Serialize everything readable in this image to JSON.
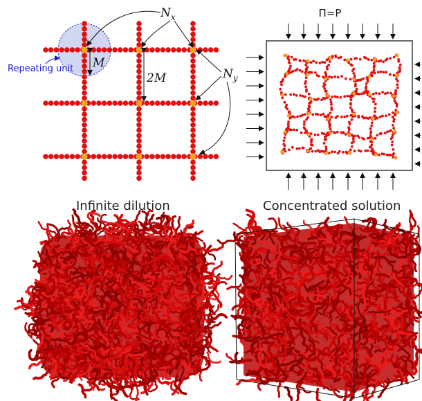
{
  "lattice_panel": {
    "label_nx": "N",
    "label_nx_sub": "x",
    "label_ny": "N",
    "label_ny_sub": "y",
    "label_m": "M",
    "label_2m": "2M",
    "repeating_unit_label": "Repeating unit"
  },
  "compressed_panel": {
    "pressure_label": "Π=P"
  },
  "captions": {
    "left": "Infinite dilution",
    "right": "Concentrated solution"
  },
  "colors": {
    "bead_red": "#e01010",
    "crosslink_orange": "#f5a51a",
    "repeating_unit_fill": "#c9d0ef",
    "repeating_unit_stroke": "#1a1ad6",
    "label_blue": "#1a1ad6",
    "box_edge": "#555555"
  }
}
